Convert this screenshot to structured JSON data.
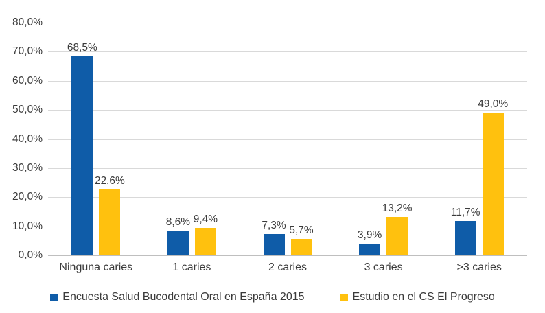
{
  "chart_data": {
    "type": "bar",
    "title": "",
    "categories": [
      "Ninguna caries",
      "1 caries",
      "2 caries",
      "3 caries",
      ">3 caries"
    ],
    "series": [
      {
        "name": "Encuesta Salud Bucodental Oral en España 2015",
        "color": "#0F5CA8",
        "values": [
          68.5,
          8.6,
          7.3,
          3.9,
          11.7
        ],
        "labels": [
          "68,5%",
          "8,6%",
          "7,3%",
          "3,9%",
          "11,7%"
        ]
      },
      {
        "name": "Estudio en el CS El Progreso",
        "color": "#FFC10E",
        "values": [
          22.6,
          9.4,
          5.7,
          13.2,
          49.0
        ],
        "labels": [
          "22,6%",
          "9,4%",
          "5,7%",
          "13,2%",
          "49,0%"
        ]
      }
    ],
    "xlabel": "",
    "ylabel": "",
    "ylim": [
      0,
      80
    ],
    "ytick_values": [
      0,
      10,
      20,
      30,
      40,
      50,
      60,
      70,
      80
    ],
    "ytick_labels": [
      "0,0%",
      "10,0%",
      "20,0%",
      "30,0%",
      "40,0%",
      "50,0%",
      "60,0%",
      "70,0%",
      "80,0%"
    ],
    "grid": true,
    "legend_position": "bottom"
  },
  "colors": {
    "background": "#FFFFFF",
    "gridline": "#D9D9D9",
    "axis_line": "#BFBFBF",
    "text": "#3B3B3B",
    "series_blue": "#0F5CA8",
    "series_yellow": "#FFC10E"
  }
}
